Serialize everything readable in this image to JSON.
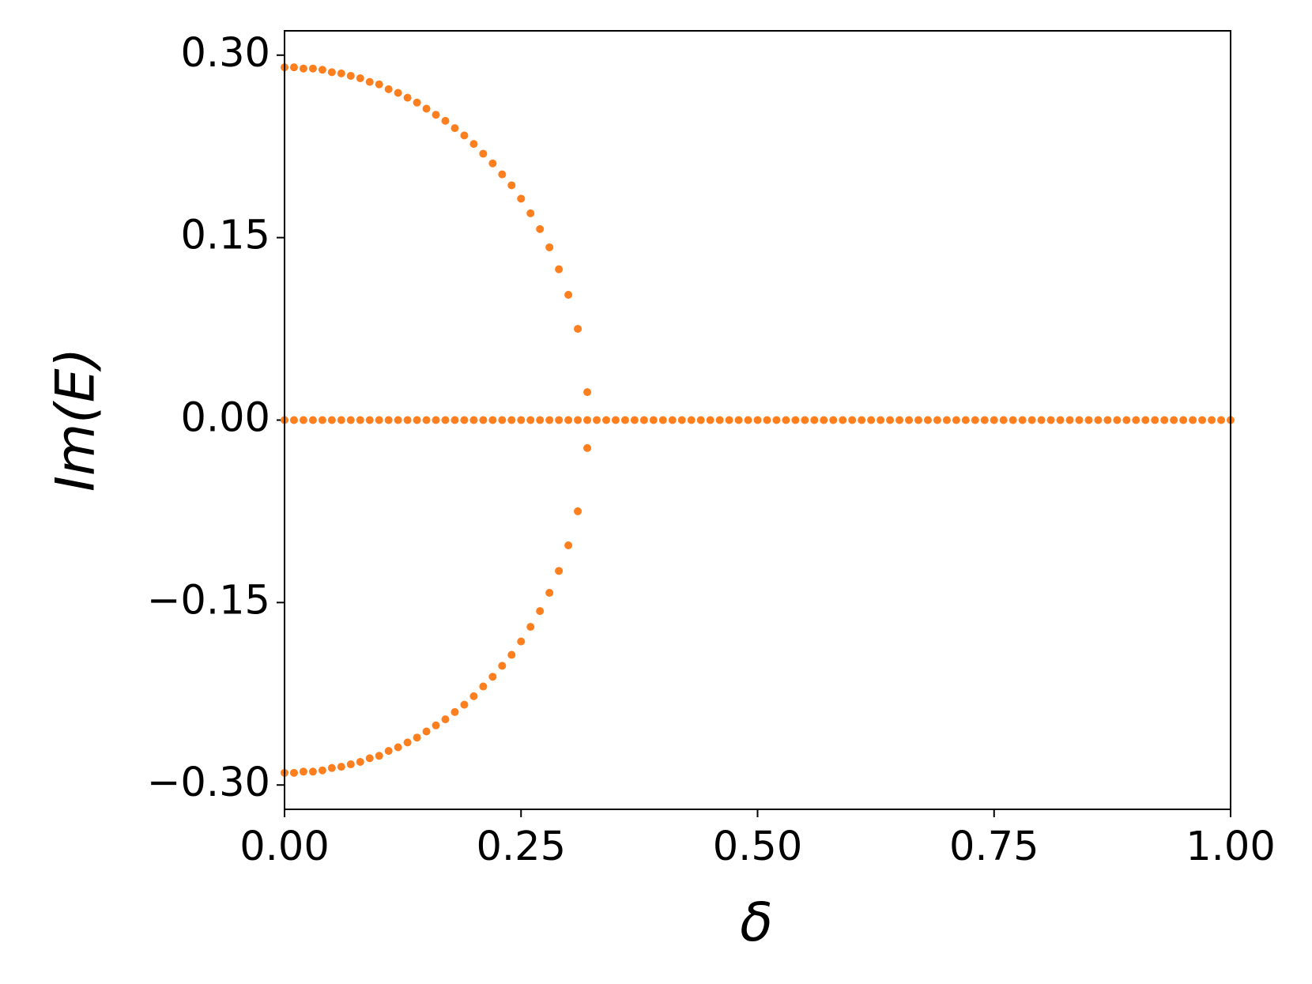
{
  "chart_data": {
    "type": "scatter",
    "xlabel": "δ",
    "ylabel": "Im(E)",
    "xlim": [
      0,
      1
    ],
    "ylim": [
      -0.32,
      0.32
    ],
    "xticks": [
      {
        "value": 0,
        "label": "0.00"
      },
      {
        "value": 0.25,
        "label": "0.25"
      },
      {
        "value": 0.5,
        "label": "0.50"
      },
      {
        "value": 0.75,
        "label": "0.75"
      },
      {
        "value": 1,
        "label": "1.00"
      }
    ],
    "yticks": [
      {
        "value": 0.3,
        "label": "0.30"
      },
      {
        "value": 0.15,
        "label": "0.15"
      },
      {
        "value": 0,
        "label": "0.00"
      },
      {
        "value": -0.15,
        "label": "−0.15"
      },
      {
        "value": -0.3,
        "label": "−0.30"
      }
    ],
    "series": [
      {
        "color": "#ff7f1e",
        "x": [
          0,
          0.01,
          0.02,
          0.03,
          0.04,
          0.05,
          0.06,
          0.07,
          0.08,
          0.09,
          0.1,
          0.11,
          0.12,
          0.13,
          0.14,
          0.15,
          0.16,
          0.17,
          0.18,
          0.19,
          0.2,
          0.21,
          0.22,
          0.23,
          0.24,
          0.25,
          0.26,
          0.27,
          0.28,
          0.29,
          0.3,
          0.31,
          0.32
        ],
        "values": [
          0.29,
          0.29,
          0.289,
          0.289,
          0.288,
          0.286,
          0.285,
          0.283,
          0.281,
          0.278,
          0.276,
          0.272,
          0.269,
          0.265,
          0.261,
          0.256,
          0.251,
          0.246,
          0.24,
          0.234,
          0.227,
          0.219,
          0.211,
          0.202,
          0.193,
          0.182,
          0.17,
          0.157,
          0.142,
          0.124,
          0.103,
          0.075,
          0.023
        ]
      },
      {
        "color": "#ff7f1e",
        "x": [
          0,
          0.01,
          0.02,
          0.03,
          0.04,
          0.05,
          0.06,
          0.07,
          0.08,
          0.09,
          0.1,
          0.11,
          0.12,
          0.13,
          0.14,
          0.15,
          0.16,
          0.17,
          0.18,
          0.19,
          0.2,
          0.21,
          0.22,
          0.23,
          0.24,
          0.25,
          0.26,
          0.27,
          0.28,
          0.29,
          0.3,
          0.31,
          0.32
        ],
        "values": [
          -0.29,
          -0.29,
          -0.289,
          -0.289,
          -0.288,
          -0.286,
          -0.285,
          -0.283,
          -0.281,
          -0.278,
          -0.276,
          -0.272,
          -0.269,
          -0.265,
          -0.261,
          -0.256,
          -0.251,
          -0.246,
          -0.24,
          -0.234,
          -0.227,
          -0.219,
          -0.211,
          -0.202,
          -0.193,
          -0.182,
          -0.17,
          -0.157,
          -0.142,
          -0.124,
          -0.103,
          -0.075,
          -0.023
        ]
      },
      {
        "color": "#ff7f1e",
        "x": [
          0,
          0.01,
          0.02,
          0.03,
          0.04,
          0.05,
          0.06,
          0.07,
          0.08,
          0.09,
          0.1,
          0.11,
          0.12,
          0.13,
          0.14,
          0.15,
          0.16,
          0.17,
          0.18,
          0.19,
          0.2,
          0.21,
          0.22,
          0.23,
          0.24,
          0.25,
          0.26,
          0.27,
          0.28,
          0.29,
          0.3,
          0.31,
          0.32,
          0.33,
          0.34,
          0.35,
          0.36,
          0.37,
          0.38,
          0.39,
          0.4,
          0.41,
          0.42,
          0.43,
          0.44,
          0.45,
          0.46,
          0.47,
          0.48,
          0.49,
          0.5,
          0.51,
          0.52,
          0.53,
          0.54,
          0.55,
          0.56,
          0.57,
          0.58,
          0.59,
          0.6,
          0.61,
          0.62,
          0.63,
          0.64,
          0.65,
          0.66,
          0.67,
          0.68,
          0.69,
          0.7,
          0.71,
          0.72,
          0.73,
          0.74,
          0.75,
          0.76,
          0.77,
          0.78,
          0.79,
          0.8,
          0.81,
          0.82,
          0.83,
          0.84,
          0.85,
          0.86,
          0.87,
          0.88,
          0.89,
          0.9,
          0.91,
          0.92,
          0.93,
          0.94,
          0.95,
          0.96,
          0.97,
          0.98,
          0.99,
          1
        ],
        "values": [
          0,
          0,
          0,
          0,
          0,
          0,
          0,
          0,
          0,
          0,
          0,
          0,
          0,
          0,
          0,
          0,
          0,
          0,
          0,
          0,
          0,
          0,
          0,
          0,
          0,
          0,
          0,
          0,
          0,
          0,
          0,
          0,
          0,
          0,
          0,
          0,
          0,
          0,
          0,
          0,
          0,
          0,
          0,
          0,
          0,
          0,
          0,
          0,
          0,
          0,
          0,
          0,
          0,
          0,
          0,
          0,
          0,
          0,
          0,
          0,
          0,
          0,
          0,
          0,
          0,
          0,
          0,
          0,
          0,
          0,
          0,
          0,
          0,
          0,
          0,
          0,
          0,
          0,
          0,
          0,
          0,
          0,
          0,
          0,
          0,
          0,
          0,
          0,
          0,
          0,
          0,
          0,
          0,
          0,
          0,
          0,
          0,
          0,
          0,
          0,
          0
        ]
      }
    ]
  }
}
